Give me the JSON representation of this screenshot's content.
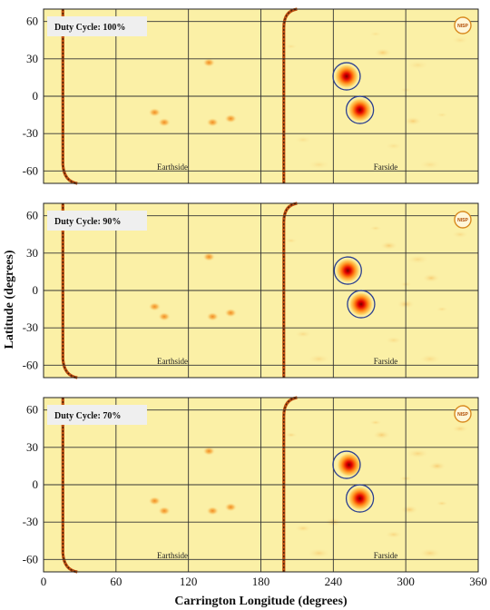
{
  "chart_data": {
    "type": "heatmap",
    "xlabel": "Carrington Longitude (degrees)",
    "ylabel": "Latitude (degrees)",
    "xlim": [
      0,
      360
    ],
    "ylim": [
      -70,
      70
    ],
    "x_ticks": [
      "0",
      "60",
      "120",
      "180",
      "240",
      "300",
      "360"
    ],
    "y_ticks": [
      "60",
      "30",
      "0",
      "-30",
      "-60"
    ],
    "grid": true,
    "logo_text": "NISP",
    "colors": {
      "background": "#fbf0a6",
      "grid": "#333333",
      "circle": "#2b3f8f",
      "core": "#e00000"
    },
    "panels": [
      {
        "label": "Duty Cycle: 100%",
        "earthside_label": "Earthside",
        "farside_label": "Farside",
        "circles": [
          {
            "lon": 251,
            "lat": 16
          },
          {
            "lon": 262,
            "lat": -11
          }
        ],
        "hotspots": [
          {
            "lon": 251,
            "lat": 16,
            "strength": 1.0
          },
          {
            "lon": 262,
            "lat": -11,
            "strength": 0.95
          },
          {
            "lon": 92,
            "lat": -13,
            "strength": 0.45
          },
          {
            "lon": 100,
            "lat": -21,
            "strength": 0.35
          },
          {
            "lon": 140,
            "lat": -21,
            "strength": 0.35
          },
          {
            "lon": 155,
            "lat": -18,
            "strength": 0.45
          },
          {
            "lon": 137,
            "lat": 27,
            "strength": 0.35
          },
          {
            "lon": 281,
            "lat": 35,
            "strength": 0.15
          },
          {
            "lon": 306,
            "lat": -20,
            "strength": 0.15
          }
        ]
      },
      {
        "label": "Duty Cycle: 90%",
        "earthside_label": "Earthside",
        "farside_label": "Farside",
        "circles": [
          {
            "lon": 252,
            "lat": 16
          },
          {
            "lon": 263,
            "lat": -11
          }
        ],
        "hotspots": [
          {
            "lon": 252,
            "lat": 16,
            "strength": 1.0
          },
          {
            "lon": 263,
            "lat": -11,
            "strength": 0.85
          },
          {
            "lon": 92,
            "lat": -13,
            "strength": 0.45
          },
          {
            "lon": 100,
            "lat": -21,
            "strength": 0.35
          },
          {
            "lon": 140,
            "lat": -21,
            "strength": 0.35
          },
          {
            "lon": 155,
            "lat": -18,
            "strength": 0.45
          },
          {
            "lon": 137,
            "lat": 27,
            "strength": 0.35
          },
          {
            "lon": 300,
            "lat": -11,
            "strength": 0.2
          },
          {
            "lon": 286,
            "lat": 36,
            "strength": 0.2
          },
          {
            "lon": 321,
            "lat": 10,
            "strength": 0.18
          }
        ]
      },
      {
        "label": "Duty Cycle: 70%",
        "earthside_label": "Earthside",
        "farside_label": "Farside",
        "circles": [
          {
            "lon": 251,
            "lat": 16
          },
          {
            "lon": 262,
            "lat": -11
          }
        ],
        "hotspots": [
          {
            "lon": 253,
            "lat": 16,
            "strength": 0.7
          },
          {
            "lon": 262,
            "lat": -11,
            "strength": 0.9
          },
          {
            "lon": 92,
            "lat": -13,
            "strength": 0.45
          },
          {
            "lon": 100,
            "lat": -21,
            "strength": 0.35
          },
          {
            "lon": 140,
            "lat": -21,
            "strength": 0.35
          },
          {
            "lon": 155,
            "lat": -18,
            "strength": 0.45
          },
          {
            "lon": 137,
            "lat": 27,
            "strength": 0.35
          },
          {
            "lon": 280,
            "lat": 40,
            "strength": 0.25
          },
          {
            "lon": 326,
            "lat": 15,
            "strength": 0.28
          },
          {
            "lon": 303,
            "lat": -20,
            "strength": 0.22
          },
          {
            "lon": 240,
            "lat": -30,
            "strength": 0.2
          }
        ]
      }
    ]
  }
}
